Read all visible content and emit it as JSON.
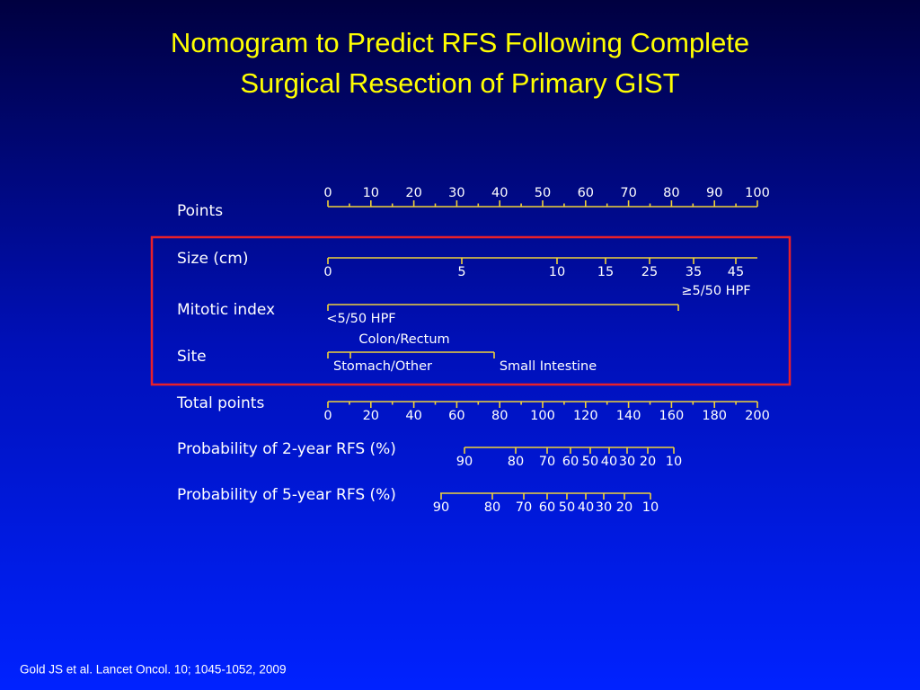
{
  "title": [
    "Nomogram to Predict RFS Following Complete",
    "Surgical Resection of Primary GIST"
  ],
  "rows": [
    {
      "label": "Points",
      "ticks": [
        "0",
        "10",
        "20",
        "30",
        "40",
        "50",
        "60",
        "70",
        "80",
        "90",
        "100"
      ]
    },
    {
      "label": "Size (cm)",
      "ticks": [
        "0",
        "5",
        "10",
        "15",
        "25",
        "35",
        "45"
      ]
    },
    {
      "label": "Mitotic index",
      "ticks": [
        "<5/50 HPF",
        "≥5/50 HPF"
      ]
    },
    {
      "label": "Site",
      "ticks": [
        "Stomach/Other",
        "Colon/Rectum",
        "Small Intestine"
      ]
    },
    {
      "label": "Total points",
      "ticks": [
        "0",
        "20",
        "40",
        "60",
        "80",
        "100",
        "120",
        "140",
        "160",
        "180",
        "200"
      ]
    },
    {
      "label": "Probability of 2-year RFS (%)",
      "ticks": [
        "90",
        "80",
        "70",
        "60",
        "50",
        "40",
        "30",
        "20",
        "10"
      ]
    },
    {
      "label": "Probability of 5-year RFS (%)",
      "ticks": [
        "90",
        "80",
        "70",
        "60",
        "50",
        "40",
        "30",
        "20",
        "10"
      ]
    }
  ],
  "footnote": "Gold JS et al. Lancet Oncol. 10; 1045-1052, 2009"
}
